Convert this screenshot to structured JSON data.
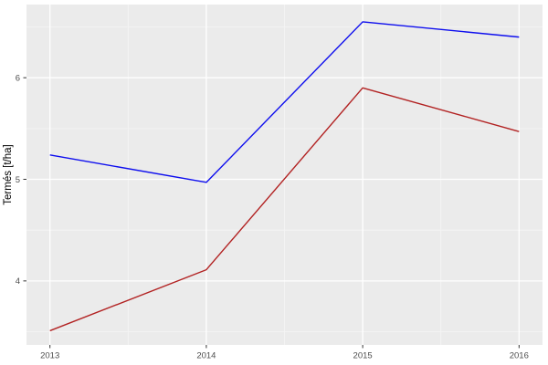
{
  "chart_data": {
    "type": "line",
    "title": "",
    "xlabel": "",
    "ylabel": "Termés [t/ha]",
    "x": [
      2013,
      2014,
      2015,
      2016
    ],
    "series": [
      {
        "name": "blue-line",
        "color": "#0E0EEE",
        "values": [
          5.24,
          4.97,
          6.55,
          6.4
        ]
      },
      {
        "name": "dark-red-line",
        "color": "#B22222",
        "values": [
          3.51,
          4.11,
          5.9,
          5.47
        ]
      }
    ],
    "x_tick_labels": [
      "2013",
      "2014",
      "2015",
      "2016"
    ],
    "x_ticks": [
      2013,
      2014,
      2015,
      2016
    ],
    "x_minor_ticks": [
      2013.5,
      2014.5,
      2015.5
    ],
    "y_ticks": [
      4,
      5,
      6
    ],
    "y_tick_labels": [
      "4",
      "5",
      "6"
    ],
    "y_minor_ticks": [
      3.5,
      4.5,
      5.5,
      6.5
    ],
    "xlim": [
      2012.85,
      2016.15
    ],
    "ylim": [
      3.37,
      6.72
    ],
    "grid": "on",
    "legend_position": "none",
    "colors": {
      "figure_background": "#FFFFFF",
      "panel_background": "#EBEBEB",
      "grid_major": "#FFFFFF",
      "grid_minor": "#F5F5F5",
      "tick_mark": "#333333",
      "tick_label": "#4D4D4D",
      "axis_title": "#000000"
    }
  }
}
